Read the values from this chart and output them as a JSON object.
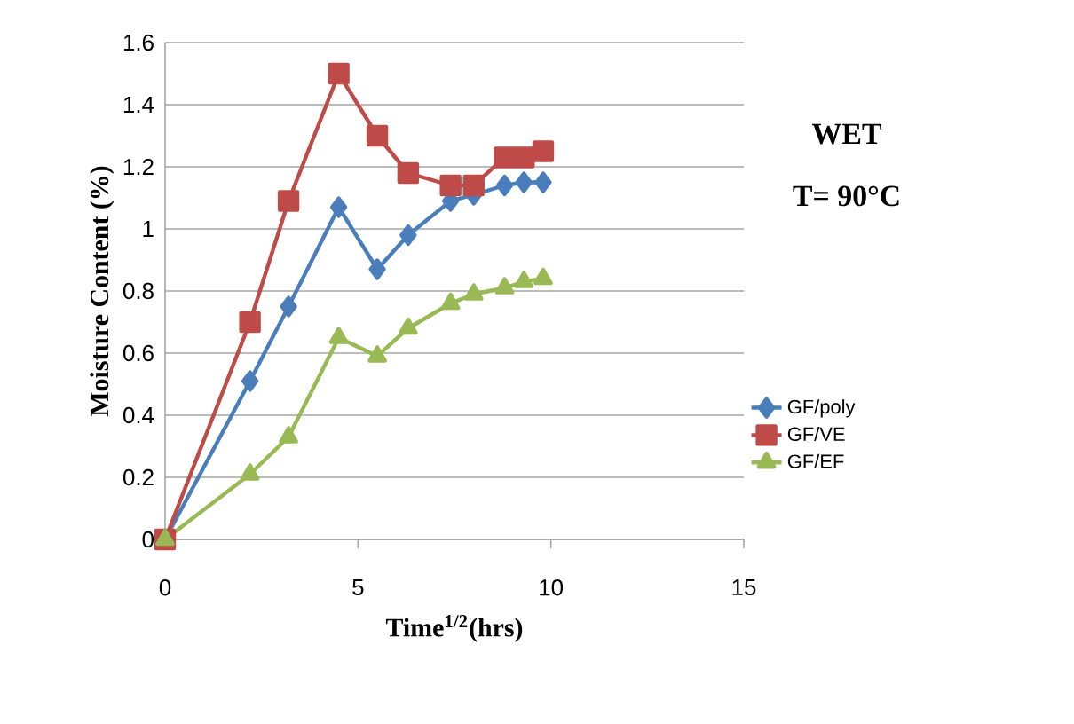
{
  "chart_data": {
    "type": "line",
    "xlabel": "Time$^{1/2}$(hrs)",
    "ylabel": "Moisture Content (%)",
    "annotations": [
      "WET",
      "T= 90°C"
    ],
    "x": [
      0,
      2.2,
      3.2,
      4.5,
      5.5,
      6.3,
      7.4,
      8,
      8.8,
      9.3,
      9.8
    ],
    "series": [
      {
        "name": "GF/poly",
        "color": "#4a7ebb",
        "marker": "diamond",
        "values": [
          0,
          0.51,
          0.75,
          1.07,
          0.87,
          0.98,
          1.09,
          1.11,
          1.14,
          1.15,
          1.15
        ]
      },
      {
        "name": "GF/VE",
        "color": "#be4b48",
        "marker": "square",
        "values": [
          0,
          0.7,
          1.09,
          1.5,
          1.3,
          1.18,
          1.14,
          1.14,
          1.23,
          1.23,
          1.25
        ]
      },
      {
        "name": "GF/EF",
        "color": "#98b954",
        "marker": "triangle",
        "values": [
          0,
          0.21,
          0.33,
          0.65,
          0.59,
          0.68,
          0.76,
          0.79,
          0.81,
          0.83,
          0.84
        ]
      }
    ],
    "xlim": [
      0,
      15
    ],
    "xticks": [
      0,
      5,
      10,
      15
    ],
    "ylim": [
      0,
      1.6
    ],
    "yticks": [
      0,
      0.2,
      0.4,
      0.6,
      0.8,
      1,
      1.2,
      1.4,
      1.6
    ],
    "grid": "y",
    "legend": "right",
    "line_style": "solid"
  }
}
